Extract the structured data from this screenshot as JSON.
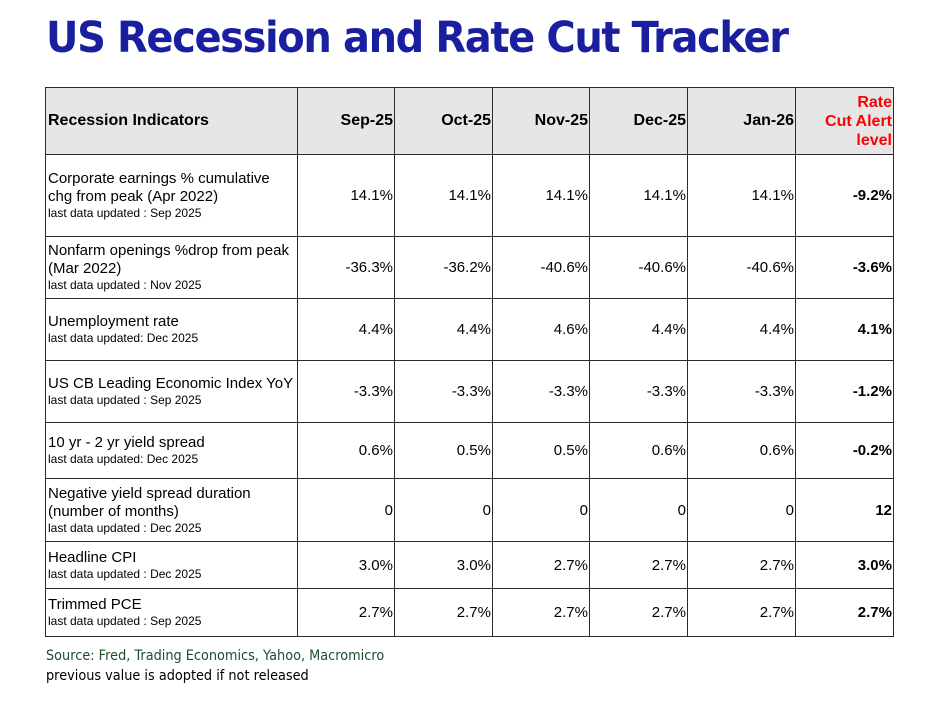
{
  "title": "US Recession and Rate Cut Tracker",
  "table": {
    "header": {
      "indicator": "Recession Indicators",
      "months": [
        "Sep-25",
        "Oct-25",
        "Nov-25",
        "Dec-25",
        "Jan-26"
      ],
      "alert_line1": "Rate",
      "alert_line2": "Cut Alert",
      "alert_line3": "level"
    },
    "rows": [
      {
        "indicator": "Corporate earnings % cumulative chg from peak (Apr 2022)",
        "updated": "last data updated : Sep 2025",
        "values": [
          "14.1%",
          "14.1%",
          "14.1%",
          "14.1%",
          "14.1%"
        ],
        "alert": "-9.2%"
      },
      {
        "indicator": "Nonfarm openings %drop from peak (Mar 2022)",
        "updated": "last data updated : Nov 2025",
        "values": [
          "-36.3%",
          "-36.2%",
          "-40.6%",
          "-40.6%",
          "-40.6%"
        ],
        "alert": "-3.6%"
      },
      {
        "indicator": "Unemployment rate",
        "updated": "last data updated: Dec 2025",
        "values": [
          "4.4%",
          "4.4%",
          "4.6%",
          "4.4%",
          "4.4%"
        ],
        "alert": "4.1%"
      },
      {
        "indicator": "US CB Leading Economic Index YoY",
        "updated": "last data updated : Sep 2025",
        "values": [
          "-3.3%",
          "-3.3%",
          "-3.3%",
          "-3.3%",
          "-3.3%"
        ],
        "alert": "-1.2%"
      },
      {
        "indicator": "10 yr - 2 yr yield spread",
        "updated": "last data updated: Dec 2025",
        "values": [
          "0.6%",
          "0.5%",
          "0.5%",
          "0.6%",
          "0.6%"
        ],
        "alert": "-0.2%"
      },
      {
        "indicator": "Negative yield spread duration (number of  months)",
        "updated": "last data updated : Dec 2025",
        "values": [
          "0",
          "0",
          "0",
          "0",
          "0"
        ],
        "alert": "12"
      },
      {
        "indicator": "Headline CPI",
        "updated": "last data updated : Dec 2025",
        "values": [
          "3.0%",
          "3.0%",
          "2.7%",
          "2.7%",
          "2.7%"
        ],
        "alert": "3.0%"
      },
      {
        "indicator": "Trimmed PCE",
        "updated": "last data updated : Sep 2025",
        "values": [
          "2.7%",
          "2.7%",
          "2.7%",
          "2.7%",
          "2.7%"
        ],
        "alert": "2.7%"
      }
    ]
  },
  "footer": {
    "source": "Source: Fred, Trading Economics, Yahoo, Macromicro",
    "note": "previous value is adopted if not released"
  },
  "colors": {
    "title": "#1a1fa0",
    "alert": "#ff0000",
    "header_bg": "#e6e6e6",
    "source_text": "#1e4d2b"
  }
}
